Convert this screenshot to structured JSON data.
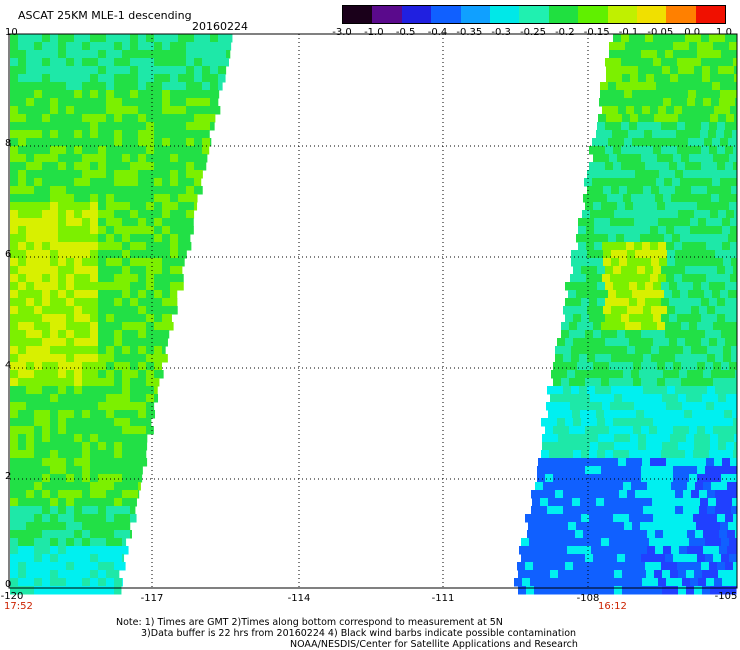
{
  "header": {
    "title": "ASCAT 25KM MLE-1 descending",
    "date": "20160224"
  },
  "colorbar": {
    "labels": [
      "-3.0",
      "-1.0",
      "-0.5",
      "-0.4",
      "-0.35",
      "-0.3",
      "-0.25",
      "-0.2",
      "-0.15",
      "-0.1",
      "-0.05",
      "0.0",
      "1.0"
    ],
    "colors": [
      "#1a001a",
      "#5a0a8c",
      "#2020e0",
      "#1060ff",
      "#10a0ff",
      "#00e8e8",
      "#20f0b0",
      "#20e040",
      "#60f000",
      "#c0f000",
      "#f0e000",
      "#ff8000",
      "#f01000"
    ]
  },
  "map": {
    "y_ticks": [
      "10",
      "8",
      "6",
      "4",
      "2",
      "0"
    ],
    "x_ticks": [
      "-120",
      "-117",
      "-114",
      "-111",
      "-108",
      "-105"
    ],
    "time_left": "17:52",
    "time_right": "16:12",
    "swath_palette": {
      "green": "#22e046",
      "lightgreen": "#7cf000",
      "yellow": "#d8f000",
      "cyan": "#00f0f0",
      "aqua": "#1ee8a8",
      "blue": "#1060ff",
      "deepblue": "#2040ff"
    }
  },
  "footer": {
    "line1": "Note: 1) Times are GMT 2)Times along bottom correspond to measurement at 5N",
    "line2": "3)Data buffer is 22 hrs from 20160224 4) Black wind barbs indicate possible contamination",
    "line3": "NOAA/NESDIS/Center for Satellite Applications and Research"
  }
}
